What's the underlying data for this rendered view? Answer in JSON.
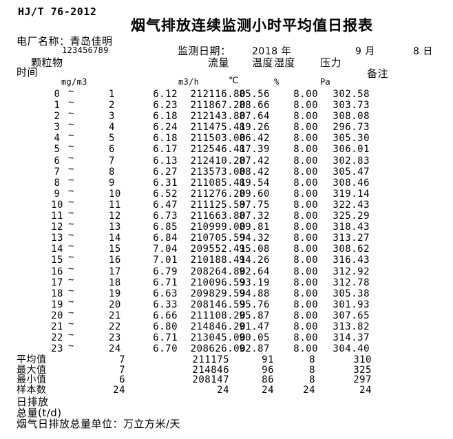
{
  "header": {
    "doc_code": "HJ/T 76-2012",
    "title": "烟气排放连续监测小时平均值日报表",
    "plant_label": "电厂名称：",
    "plant_name": "青岛佳明",
    "backtick": "`",
    "plant_code": "123456789",
    "date_label": "监测日期：",
    "date_year": "2018 年",
    "date_month": "9 月",
    "date_day": "8 日"
  },
  "columns": {
    "time": "时间",
    "pm": "颗粒物",
    "flow": "流量",
    "temp": "温度",
    "humidity": "湿度",
    "pressure": "压力",
    "remark": "备注",
    "units": {
      "pm": "mg/m3",
      "flow": "m3/h",
      "temp": "℃",
      "humidity": "%",
      "pressure": "Pa"
    }
  },
  "table": {
    "tilde": "~",
    "rows": [
      {
        "start": "0",
        "end": "1",
        "pm": "6.12",
        "flow": "212116.80",
        "temp": "85.56",
        "humidity": "8.00",
        "pressure": "302.58"
      },
      {
        "start": "1",
        "end": "2",
        "pm": "6.23",
        "flow": "211867.20",
        "temp": "88.66",
        "humidity": "8.00",
        "pressure": "303.73"
      },
      {
        "start": "2",
        "end": "3",
        "pm": "6.18",
        "flow": "212143.80",
        "temp": "87.64",
        "humidity": "8.00",
        "pressure": "308.08"
      },
      {
        "start": "3",
        "end": "4",
        "pm": "6.24",
        "flow": "211475.41",
        "temp": "89.26",
        "humidity": "8.00",
        "pressure": "296.73"
      },
      {
        "start": "4",
        "end": "5",
        "pm": "6.18",
        "flow": "211503.00",
        "temp": "86.42",
        "humidity": "8.00",
        "pressure": "305.30"
      },
      {
        "start": "5",
        "end": "6",
        "pm": "6.17",
        "flow": "212546.41",
        "temp": "87.39",
        "humidity": "8.00",
        "pressure": "306.01"
      },
      {
        "start": "6",
        "end": "7",
        "pm": "6.13",
        "flow": "212410.20",
        "temp": "87.42",
        "humidity": "8.00",
        "pressure": "302.83"
      },
      {
        "start": "7",
        "end": "8",
        "pm": "6.27",
        "flow": "213573.00",
        "temp": "88.42",
        "humidity": "8.00",
        "pressure": "305.47"
      },
      {
        "start": "8",
        "end": "9",
        "pm": "6.31",
        "flow": "211085.41",
        "temp": "89.54",
        "humidity": "8.00",
        "pressure": "308.46"
      },
      {
        "start": "9",
        "end": "10",
        "pm": "6.52",
        "flow": "211276.20",
        "temp": "89.60",
        "humidity": "8.00",
        "pressure": "319.14"
      },
      {
        "start": "10",
        "end": "11",
        "pm": "6.47",
        "flow": "211125.59",
        "temp": "87.75",
        "humidity": "8.00",
        "pressure": "322.43"
      },
      {
        "start": "11",
        "end": "12",
        "pm": "6.73",
        "flow": "211663.80",
        "temp": "87.32",
        "humidity": "8.00",
        "pressure": "325.29"
      },
      {
        "start": "12",
        "end": "13",
        "pm": "6.85",
        "flow": "210999.00",
        "temp": "89.81",
        "humidity": "8.00",
        "pressure": "318.43"
      },
      {
        "start": "13",
        "end": "14",
        "pm": "6.84",
        "flow": "210705.59",
        "temp": "94.32",
        "humidity": "8.00",
        "pressure": "313.27"
      },
      {
        "start": "14",
        "end": "15",
        "pm": "7.04",
        "flow": "209552.41",
        "temp": "95.08",
        "humidity": "8.00",
        "pressure": "308.62"
      },
      {
        "start": "15",
        "end": "16",
        "pm": "7.01",
        "flow": "210188.41",
        "temp": "94.26",
        "humidity": "8.00",
        "pressure": "316.43"
      },
      {
        "start": "16",
        "end": "17",
        "pm": "6.79",
        "flow": "208264.80",
        "temp": "92.64",
        "humidity": "8.00",
        "pressure": "312.92"
      },
      {
        "start": "17",
        "end": "18",
        "pm": "6.71",
        "flow": "210096.59",
        "temp": "93.19",
        "humidity": "8.00",
        "pressure": "312.78"
      },
      {
        "start": "18",
        "end": "19",
        "pm": "6.63",
        "flow": "209829.59",
        "temp": "94.88",
        "humidity": "8.00",
        "pressure": "305.38"
      },
      {
        "start": "19",
        "end": "20",
        "pm": "6.33",
        "flow": "208146.59",
        "temp": "95.76",
        "humidity": "8.00",
        "pressure": "301.93"
      },
      {
        "start": "20",
        "end": "21",
        "pm": "6.66",
        "flow": "211108.20",
        "temp": "95.87",
        "humidity": "8.00",
        "pressure": "307.65"
      },
      {
        "start": "21",
        "end": "22",
        "pm": "6.80",
        "flow": "214846.20",
        "temp": "91.47",
        "humidity": "8.00",
        "pressure": "313.82"
      },
      {
        "start": "22",
        "end": "23",
        "pm": "6.71",
        "flow": "213045.00",
        "temp": "90.05",
        "humidity": "8.00",
        "pressure": "314.37"
      },
      {
        "start": "23",
        "end": "24",
        "pm": "6.70",
        "flow": "208626.00",
        "temp": "92.87",
        "humidity": "8.00",
        "pressure": "304.40"
      }
    ]
  },
  "summary": {
    "rows": [
      {
        "label": "平均值",
        "pm": "7",
        "flow": "211175",
        "temp": "91",
        "humidity": "8",
        "pressure": "310"
      },
      {
        "label": "最大值",
        "pm": "7",
        "flow": "214846",
        "temp": "96",
        "humidity": "8",
        "pressure": "325"
      },
      {
        "label": "最小值",
        "pm": "6",
        "flow": "208147",
        "temp": "86",
        "humidity": "8",
        "pressure": "297"
      },
      {
        "label": "样本数",
        "pm": "24",
        "flow": "24",
        "temp": "24",
        "humidity": "24",
        "pressure": "24"
      }
    ],
    "daily_emission_label": "日排放",
    "total_label": "总量(t/d)",
    "unit_note": "烟气日排放总量单位：万立方米/天"
  }
}
